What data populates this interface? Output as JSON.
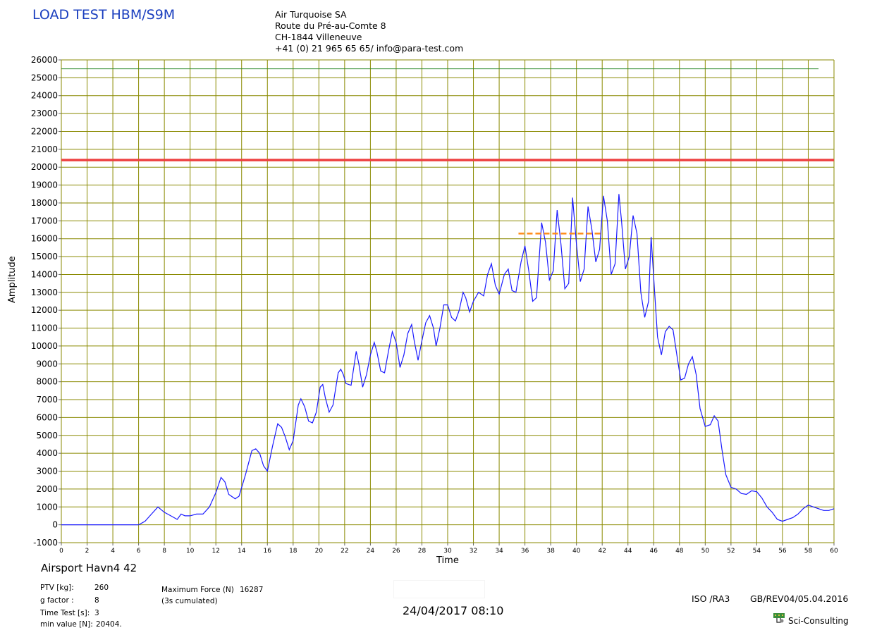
{
  "header": {
    "title": "LOAD TEST HBM/S9M",
    "address": [
      "Air Turquoise SA",
      "Route du Pré-au-Comte 8",
      "CH-1844 Villeneuve",
      "+41 (0) 21 965 65 65/ info@para-test.com"
    ]
  },
  "chart_data": {
    "type": "line",
    "xlabel": "Time",
    "ylabel": "Amplitude",
    "xlim": [
      0,
      60
    ],
    "ylim": [
      -1000,
      26000
    ],
    "x_ticks": [
      "0",
      "2",
      "4",
      "6",
      "8",
      "10",
      "12",
      "14",
      "16",
      "18",
      "20",
      "22",
      "24",
      "26",
      "28",
      "30",
      "32",
      "34",
      "36",
      "38",
      "40",
      "42",
      "44",
      "46",
      "48",
      "50",
      "52",
      "54",
      "56",
      "58",
      "60"
    ],
    "y_ticks": [
      "26000",
      "25000",
      "24000",
      "23000",
      "22000",
      "21000",
      "20000",
      "19000",
      "18000",
      "17000",
      "16000",
      "15000",
      "14000",
      "13000",
      "12000",
      "11000",
      "10000",
      "9000",
      "8000",
      "7000",
      "6000",
      "5000",
      "4000",
      "3000",
      "2000",
      "1000",
      "0",
      "-1000"
    ],
    "grid": true,
    "reference_lines": [
      {
        "value": 25500,
        "color": "#2e8b2e"
      },
      {
        "value": 20400,
        "color": "#ee4040"
      }
    ],
    "cumulated_segment": {
      "x_start": 35.5,
      "x_end": 42.0,
      "value": 16287,
      "color": "#ff8c1a"
    },
    "series": [
      {
        "color": "#1a1aff",
        "points": [
          [
            0,
            0
          ],
          [
            6.0,
            0
          ],
          [
            6.5,
            200
          ],
          [
            7.0,
            600
          ],
          [
            7.5,
            1000
          ],
          [
            8.0,
            700
          ],
          [
            8.5,
            500
          ],
          [
            9.0,
            300
          ],
          [
            9.3,
            600
          ],
          [
            9.6,
            500
          ],
          [
            10.0,
            500
          ],
          [
            10.5,
            600
          ],
          [
            11.0,
            600
          ],
          [
            11.5,
            1000
          ],
          [
            12.0,
            1800
          ],
          [
            12.4,
            2650
          ],
          [
            12.7,
            2400
          ],
          [
            13.0,
            1700
          ],
          [
            13.5,
            1450
          ],
          [
            13.8,
            1600
          ],
          [
            14.3,
            2800
          ],
          [
            14.8,
            4150
          ],
          [
            15.1,
            4250
          ],
          [
            15.4,
            4000
          ],
          [
            15.7,
            3300
          ],
          [
            16.0,
            3000
          ],
          [
            16.4,
            4400
          ],
          [
            16.8,
            5650
          ],
          [
            17.1,
            5450
          ],
          [
            17.4,
            4900
          ],
          [
            17.7,
            4200
          ],
          [
            18.0,
            4700
          ],
          [
            18.4,
            6700
          ],
          [
            18.6,
            7050
          ],
          [
            18.9,
            6600
          ],
          [
            19.2,
            5800
          ],
          [
            19.5,
            5700
          ],
          [
            19.8,
            6300
          ],
          [
            20.1,
            7700
          ],
          [
            20.3,
            7850
          ],
          [
            20.5,
            7100
          ],
          [
            20.8,
            6300
          ],
          [
            21.1,
            6700
          ],
          [
            21.5,
            8500
          ],
          [
            21.7,
            8700
          ],
          [
            21.9,
            8400
          ],
          [
            22.1,
            7900
          ],
          [
            22.5,
            7800
          ],
          [
            22.9,
            9700
          ],
          [
            23.1,
            9000
          ],
          [
            23.4,
            7700
          ],
          [
            23.7,
            8400
          ],
          [
            24.0,
            9500
          ],
          [
            24.3,
            10200
          ],
          [
            24.5,
            9700
          ],
          [
            24.8,
            8600
          ],
          [
            25.1,
            8500
          ],
          [
            25.4,
            9700
          ],
          [
            25.7,
            10800
          ],
          [
            26.0,
            10200
          ],
          [
            26.3,
            8800
          ],
          [
            26.6,
            9500
          ],
          [
            26.9,
            10700
          ],
          [
            27.2,
            11200
          ],
          [
            27.4,
            10300
          ],
          [
            27.7,
            9200
          ],
          [
            28.0,
            10300
          ],
          [
            28.3,
            11300
          ],
          [
            28.6,
            11700
          ],
          [
            28.9,
            11000
          ],
          [
            29.1,
            10000
          ],
          [
            29.4,
            11000
          ],
          [
            29.7,
            12300
          ],
          [
            30.0,
            12300
          ],
          [
            30.3,
            11600
          ],
          [
            30.6,
            11400
          ],
          [
            30.9,
            12000
          ],
          [
            31.2,
            13000
          ],
          [
            31.4,
            12700
          ],
          [
            31.7,
            11900
          ],
          [
            32.0,
            12500
          ],
          [
            32.4,
            13000
          ],
          [
            32.8,
            12800
          ],
          [
            33.1,
            14000
          ],
          [
            33.4,
            14600
          ],
          [
            33.7,
            13400
          ],
          [
            34.0,
            12900
          ],
          [
            34.4,
            14000
          ],
          [
            34.7,
            14300
          ],
          [
            35.0,
            13100
          ],
          [
            35.3,
            13000
          ],
          [
            35.7,
            14700
          ],
          [
            36.0,
            15600
          ],
          [
            36.3,
            14200
          ],
          [
            36.6,
            12500
          ],
          [
            36.9,
            12700
          ],
          [
            37.3,
            16900
          ],
          [
            37.6,
            15800
          ],
          [
            37.9,
            13700
          ],
          [
            38.2,
            14200
          ],
          [
            38.5,
            17600
          ],
          [
            38.8,
            15700
          ],
          [
            39.1,
            13200
          ],
          [
            39.4,
            13500
          ],
          [
            39.7,
            18300
          ],
          [
            40.0,
            15700
          ],
          [
            40.3,
            13600
          ],
          [
            40.6,
            14300
          ],
          [
            40.9,
            17800
          ],
          [
            41.2,
            16500
          ],
          [
            41.5,
            14700
          ],
          [
            41.8,
            15400
          ],
          [
            42.1,
            18400
          ],
          [
            42.4,
            17000
          ],
          [
            42.7,
            14000
          ],
          [
            43.0,
            14600
          ],
          [
            43.3,
            18500
          ],
          [
            43.5,
            17000
          ],
          [
            43.8,
            14300
          ],
          [
            44.1,
            15000
          ],
          [
            44.4,
            17300
          ],
          [
            44.7,
            16300
          ],
          [
            45.0,
            13000
          ],
          [
            45.3,
            11600
          ],
          [
            45.6,
            12500
          ],
          [
            45.8,
            16100
          ],
          [
            46.0,
            13800
          ],
          [
            46.3,
            10500
          ],
          [
            46.6,
            9500
          ],
          [
            46.9,
            10800
          ],
          [
            47.2,
            11100
          ],
          [
            47.5,
            10900
          ],
          [
            47.8,
            9500
          ],
          [
            48.1,
            8100
          ],
          [
            48.4,
            8200
          ],
          [
            48.7,
            9000
          ],
          [
            49.0,
            9400
          ],
          [
            49.3,
            8400
          ],
          [
            49.6,
            6500
          ],
          [
            50.0,
            5500
          ],
          [
            50.4,
            5600
          ],
          [
            50.7,
            6100
          ],
          [
            51.0,
            5800
          ],
          [
            51.3,
            4200
          ],
          [
            51.6,
            2800
          ],
          [
            52.0,
            2100
          ],
          [
            52.4,
            2000
          ],
          [
            52.8,
            1750
          ],
          [
            53.2,
            1700
          ],
          [
            53.6,
            1900
          ],
          [
            54.0,
            1850
          ],
          [
            54.4,
            1500
          ],
          [
            54.8,
            1000
          ],
          [
            55.2,
            700
          ],
          [
            55.6,
            300
          ],
          [
            56.0,
            200
          ],
          [
            56.4,
            300
          ],
          [
            56.8,
            400
          ],
          [
            57.2,
            600
          ],
          [
            57.6,
            900
          ],
          [
            58.0,
            1100
          ],
          [
            58.4,
            1000
          ],
          [
            58.8,
            900
          ],
          [
            59.2,
            800
          ],
          [
            59.6,
            800
          ],
          [
            60.0,
            900
          ]
        ]
      }
    ]
  },
  "info": {
    "product": "Airsport Havn4 42",
    "rows": [
      {
        "label": "PTV [kg]:",
        "value": "260"
      },
      {
        "label": "g factor :",
        "value": "8"
      },
      {
        "label": "Time Test [s]:",
        "value": "3"
      },
      {
        "label": "min value [N]:",
        "value": "20404."
      }
    ],
    "max_force_label": "Maximum Force (N)",
    "max_force_value": "16287",
    "cumulated_note": "(3s cumulated)",
    "datetime": "24/04/2017 08:10",
    "iso": "ISO /RA3",
    "revision": "GB/REV04/05.04.2016",
    "brand": "Sci-Consulting"
  }
}
